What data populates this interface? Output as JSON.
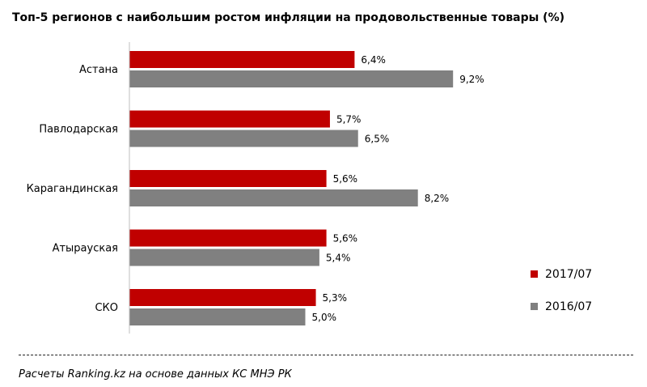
{
  "chart_data": {
    "type": "bar",
    "orientation": "horizontal",
    "title": "Топ-5 регионов с наибольшим ростом инфляции на продовольственные товары (%)",
    "categories": [
      "Астана",
      "Павлодарская",
      "Карагандинская",
      "Атырауская",
      "СКО"
    ],
    "series": [
      {
        "name": "2017/07",
        "color": "#c00000",
        "values": [
          6.4,
          5.7,
          5.6,
          5.6,
          5.3
        ],
        "labels": [
          "6,4%",
          "5,7%",
          "5,6%",
          "5,6%",
          "5,3%"
        ]
      },
      {
        "name": "2016/07",
        "color": "#808080",
        "values": [
          9.2,
          6.5,
          8.2,
          5.4,
          5.0
        ],
        "labels": [
          "9,2%",
          "6,5%",
          "8,2%",
          "5,4%",
          "5,0%"
        ]
      }
    ],
    "xlim": [
      0,
      10
    ],
    "grid": false,
    "legend_position": "right"
  },
  "source": "Расчеты Ranking.kz на основе данных КС МНЭ РК"
}
